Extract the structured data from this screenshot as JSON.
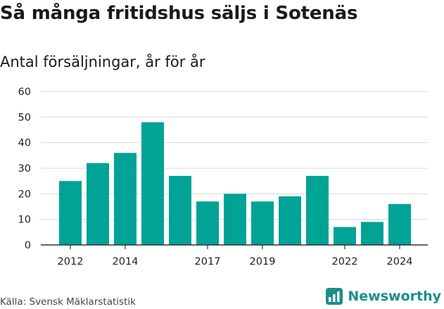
{
  "title": "Så många fritidshus säljs i Sotenäs",
  "subtitle": "Antal försäljningar, år för år",
  "source": "Källa: Svensk Mäklarstatistik",
  "brand": "Newsworthy",
  "colors": {
    "bar": "#00a396",
    "grid": "#d9d9d9",
    "axis": "#333333",
    "brand": "#1b8f87"
  },
  "chart_data": {
    "type": "bar",
    "categories": [
      "2012",
      "2013",
      "2014",
      "2015",
      "2016",
      "2017",
      "2018",
      "2019",
      "2020",
      "2021",
      "2022",
      "2023",
      "2024"
    ],
    "values": [
      25,
      32,
      36,
      48,
      27,
      17,
      20,
      17,
      19,
      27,
      7,
      9,
      16
    ],
    "x_tick_labels": [
      "2012",
      "2014",
      "2017",
      "2019",
      "2022",
      "2024"
    ],
    "y_ticks": [
      0,
      10,
      20,
      30,
      40,
      50,
      60
    ],
    "ylim": [
      0,
      60
    ],
    "grid": true,
    "title": "Så många fritidshus säljs i Sotenäs",
    "subtitle": "Antal försäljningar, år för år",
    "xlabel": "",
    "ylabel": ""
  }
}
